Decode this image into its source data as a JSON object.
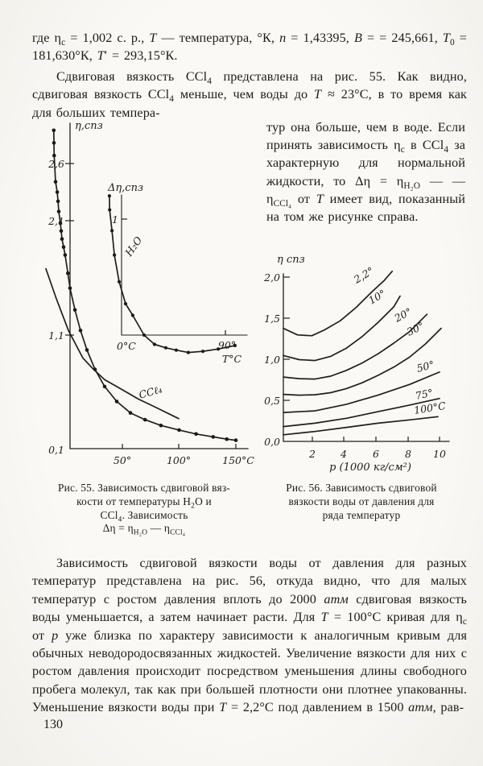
{
  "page": {
    "number": "130"
  },
  "intro": {
    "para1_html": "где η<sub>с</sub> = 1,002 с. р., <i>T</i> — температура, °К, <i>n</i> = 1,43395, <i>B</i> = = 245,661, <i>T</i><sub>0</sub> = 181,630°К, <i>T</i>′ = 293,15°К.",
    "para2_html": "Сдвиговая вязкость CCl<sub>4</sub> представлена на рис. 55. Как видно, сдвиговая вязкость CCl<sub>4</sub> меньше, чем воды до <i>T</i> ≈ 23°С, в то время как для больших темпера-",
    "para2_col_html": "тур она больше, чем в воде. Если принять зависимость η<sub>с</sub> в CCl<sub>4</sub> за характерную для нормальной жидкости, то Δη = η<sub>H₂O</sub> — — η<sub>CCl₄</sub> от <i>T</i> имеет вид, показанный на том же рисунке справа."
  },
  "fig55": {
    "ylabel": "η,спз",
    "yticks": [
      "2,6",
      "2,1",
      "1,1",
      "0,1"
    ],
    "xticks": [
      "50°",
      "100°",
      "150°C"
    ],
    "series_labels": [
      "H₂O",
      "CCℓ₄"
    ],
    "inset": {
      "ylabel": "Δη,спз",
      "ytick": "1",
      "x_origin": "0°C",
      "x_tick": "90°",
      "xlabel": "T°C"
    },
    "caption_lines_html": [
      "Рис. 55. Зависимость сдвиговой вяз-",
      "кости от температуры H<sub>2</sub>O и",
      "CCl<sub>4</sub>. Зависимость",
      "Δη = η<sub>H₂O</sub> — η<sub>CCl₄</sub>"
    ]
  },
  "fig56": {
    "ylabel": "η спз",
    "yticks": [
      "2,0",
      "1,5",
      "1,0",
      "0,5",
      "0,0"
    ],
    "xticks": [
      "2",
      "4",
      "6",
      "8",
      "10"
    ],
    "xlabel": "p (1000 кг/см²)",
    "curve_labels": [
      "2,2°",
      "10°",
      "20°",
      "30°",
      "50°",
      "75°",
      "100°C"
    ],
    "caption_lines_html": [
      "Рис. 56.  Зависимость сдвиговой",
      "вязкости воды от давления для",
      "ряда температур"
    ]
  },
  "body": {
    "para_html": "Зависимость сдвиговой вязкости воды от давления для разных температур представлена на рис. 56, откуда видно, что для малых температур с ростом давления вплоть до 2000 <i>атм</i> сдвиговая вязкость воды уменьшается, а затем начинает расти. Для <i>T</i> = 100°С кривая для η<sub>с</sub> от <i>p</i> уже близка по характеру зависимости к аналогичным кривым для обычных неводородосвязанных жидкостей. Увеличение вязкости для них с ростом давления происходит посредством уменьшения длины свободного пробега молекул, так как при большей плотности они плотнее упакованны. Уменьшение вязкости воды при <i>T</i> = 2,2°С под давлением в 1500 <i>атм</i>, рав-"
  },
  "chart_data": [
    {
      "id": "fig55_main",
      "type": "line",
      "title": "Зависимость сдвиговой вязкости от температуры H₂O и CCl₄",
      "xlabel": "T, °C",
      "ylabel": "η, спз",
      "xticks": [
        50,
        100,
        150
      ],
      "yticks": [
        0.1,
        1.1,
        2.1,
        2.6
      ],
      "xlim": [
        -22,
        155
      ],
      "ylim": [
        0.1,
        2.95
      ],
      "legend_position": "on-curve",
      "grid": false,
      "series": [
        {
          "name": "H₂O",
          "marker": "dot",
          "points": [
            [
              -10.4,
              2.89
            ],
            [
              -10.3,
              2.78
            ],
            [
              -10.1,
              2.67
            ],
            [
              -8.9,
              2.44
            ],
            [
              -7.4,
              2.35
            ],
            [
              -6.7,
              2.27
            ],
            [
              -6.0,
              2.18
            ],
            [
              -4.6,
              2.08
            ],
            [
              -3.9,
              2.01
            ],
            [
              -3.2,
              1.94
            ],
            [
              -1.8,
              1.87
            ],
            [
              -0.4,
              1.8
            ],
            [
              2.0,
              1.64
            ],
            [
              3.9,
              1.51
            ],
            [
              8.2,
              1.32
            ],
            [
              13.1,
              1.14
            ],
            [
              18.8,
              0.97
            ],
            [
              25.9,
              0.8
            ],
            [
              34.4,
              0.65
            ],
            [
              45.0,
              0.52
            ],
            [
              57.1,
              0.42
            ],
            [
              70.0,
              0.36
            ],
            [
              84.0,
              0.31
            ],
            [
              100.0,
              0.27
            ],
            [
              115.0,
              0.235
            ],
            [
              130.0,
              0.21
            ],
            [
              142.0,
              0.19
            ],
            [
              150.0,
              0.18
            ]
          ]
        },
        {
          "name": "CCl₄",
          "marker": "none",
          "points": [
            [
              -17.4,
              1.68
            ],
            [
              -8.2,
              1.42
            ],
            [
              2.5,
              1.14
            ],
            [
              15.2,
              0.9
            ],
            [
              23.7,
              0.81
            ],
            [
              34.4,
              0.71
            ],
            [
              48.6,
              0.63
            ],
            [
              64.2,
              0.54
            ],
            [
              79.1,
              0.47
            ],
            [
              99.6,
              0.37
            ]
          ]
        }
      ]
    },
    {
      "id": "fig55_inset",
      "type": "line",
      "title": "Δη = η(H₂O) − η(CCl₄) от температуры",
      "xlabel": "T°C",
      "ylabel": "Δη, спз",
      "xticks": [
        0,
        90
      ],
      "yticks": [
        1
      ],
      "xlim": [
        -11,
        110
      ],
      "ylim": [
        -0.25,
        1.25
      ],
      "grid": false,
      "series": [
        {
          "name": "Δη",
          "marker": "dot",
          "points": [
            [
              -10.6,
              1.2
            ],
            [
              -10.4,
              1.08
            ],
            [
              -8.4,
              0.9
            ],
            [
              -6.3,
              0.69
            ],
            [
              -2.1,
              0.46
            ],
            [
              3.5,
              0.27
            ],
            [
              9.8,
              0.17
            ],
            [
              19.7,
              0.0
            ],
            [
              28.8,
              -0.08
            ],
            [
              38.7,
              -0.11
            ],
            [
              47.8,
              -0.13
            ],
            [
              58.4,
              -0.15
            ],
            [
              71.1,
              -0.14
            ],
            [
              84.5,
              -0.12
            ],
            [
              99.2,
              -0.09
            ]
          ]
        }
      ]
    },
    {
      "id": "fig56",
      "type": "line",
      "title": "Зависимость сдвиговой вязкости воды от давления для ряда температур",
      "xlabel": "p (1000 кг/см²)",
      "ylabel": "η спз",
      "xticks": [
        2,
        4,
        6,
        8,
        10
      ],
      "yticks": [
        0.0,
        0.5,
        1.0,
        1.5,
        2.0
      ],
      "xlim": [
        0,
        10.5
      ],
      "ylim": [
        0,
        2.1
      ],
      "legend_position": "on-curve",
      "grid": false,
      "series": [
        {
          "name": "2,2°",
          "marker": "none",
          "points": [
            [
              0,
              1.37
            ],
            [
              0.9,
              1.29
            ],
            [
              1.8,
              1.28
            ],
            [
              2.6,
              1.35
            ],
            [
              3.6,
              1.46
            ],
            [
              4.6,
              1.62
            ],
            [
              5.6,
              1.81
            ],
            [
              6.4,
              1.95
            ],
            [
              6.9,
              2.06
            ]
          ]
        },
        {
          "name": "10°",
          "marker": "none",
          "points": [
            [
              0,
              1.04
            ],
            [
              1,
              0.99
            ],
            [
              2,
              0.98
            ],
            [
              3,
              1.03
            ],
            [
              4,
              1.13
            ],
            [
              5,
              1.27
            ],
            [
              6,
              1.44
            ],
            [
              7,
              1.63
            ],
            [
              7.4,
              1.76
            ]
          ]
        },
        {
          "name": "20°",
          "marker": "none",
          "points": [
            [
              0,
              0.78
            ],
            [
              1,
              0.76
            ],
            [
              2,
              0.755
            ],
            [
              3,
              0.79
            ],
            [
              4,
              0.86
            ],
            [
              5,
              0.95
            ],
            [
              6,
              1.06
            ],
            [
              7,
              1.19
            ],
            [
              8,
              1.33
            ],
            [
              9.1,
              1.54
            ]
          ]
        },
        {
          "name": "30°",
          "marker": "none",
          "points": [
            [
              0,
              0.57
            ],
            [
              1,
              0.56
            ],
            [
              2,
              0.565
            ],
            [
              3,
              0.59
            ],
            [
              4,
              0.64
            ],
            [
              5,
              0.71
            ],
            [
              6,
              0.8
            ],
            [
              7,
              0.9
            ],
            [
              8,
              1.02
            ],
            [
              9,
              1.18
            ],
            [
              10,
              1.37
            ]
          ]
        },
        {
          "name": "50°",
          "marker": "none",
          "points": [
            [
              0,
              0.35
            ],
            [
              2,
              0.37
            ],
            [
              4,
              0.45
            ],
            [
              6,
              0.56
            ],
            [
              8,
              0.69
            ],
            [
              9.9,
              0.84
            ]
          ]
        },
        {
          "name": "75°",
          "marker": "none",
          "points": [
            [
              0,
              0.18
            ],
            [
              2,
              0.22
            ],
            [
              4,
              0.28
            ],
            [
              6,
              0.36
            ],
            [
              8,
              0.44
            ],
            [
              9.9,
              0.52
            ]
          ]
        },
        {
          "name": "100°",
          "marker": "none",
          "points": [
            [
              0,
              0.08
            ],
            [
              2,
              0.12
            ],
            [
              4,
              0.17
            ],
            [
              6,
              0.22
            ],
            [
              8,
              0.26
            ],
            [
              9.8,
              0.3
            ]
          ]
        }
      ]
    }
  ]
}
